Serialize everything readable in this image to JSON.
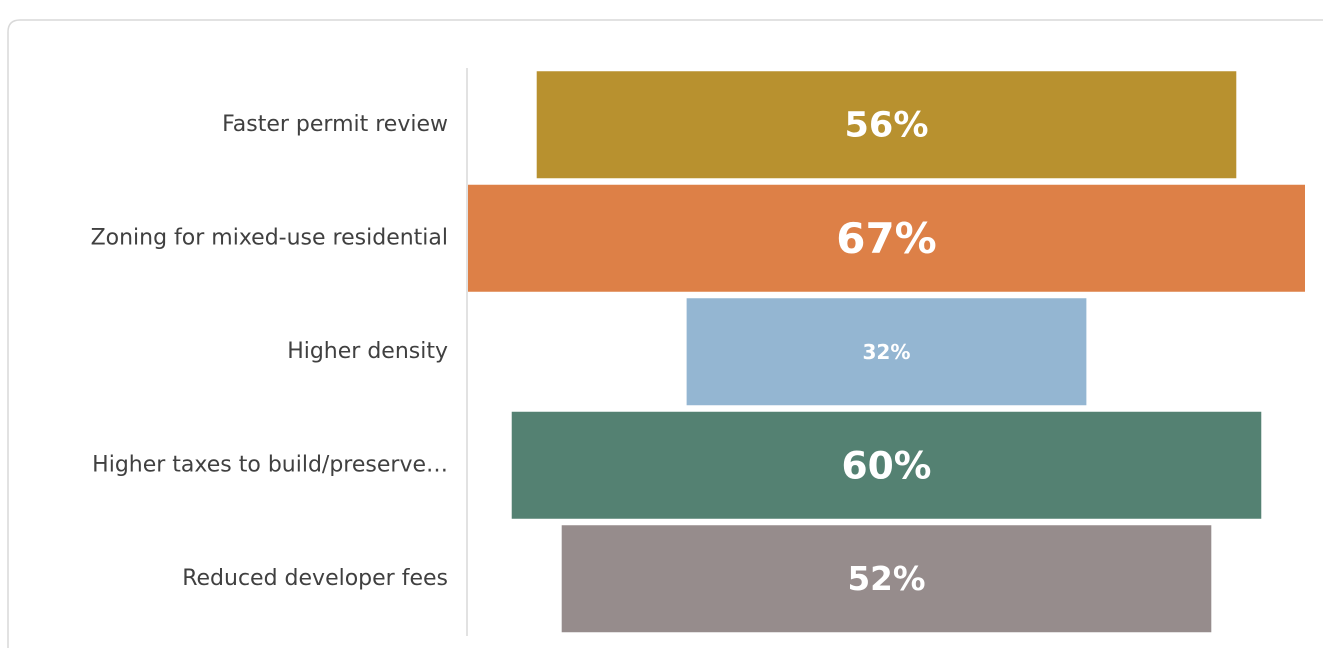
{
  "chart_data": {
    "type": "funnel",
    "categories": [
      "Faster permit review",
      "Zoning for mixed-use residential",
      "Higher density",
      "Higher taxes to build/preserve…",
      "Reduced developer fees"
    ],
    "values": [
      56,
      67,
      32,
      60,
      52
    ],
    "value_labels": [
      "56%",
      "67%",
      "32%",
      "60%",
      "52%"
    ],
    "colors": [
      "#b8912f",
      "#dd8047",
      "#94b6d2",
      "#548172",
      "#968c8c"
    ]
  }
}
